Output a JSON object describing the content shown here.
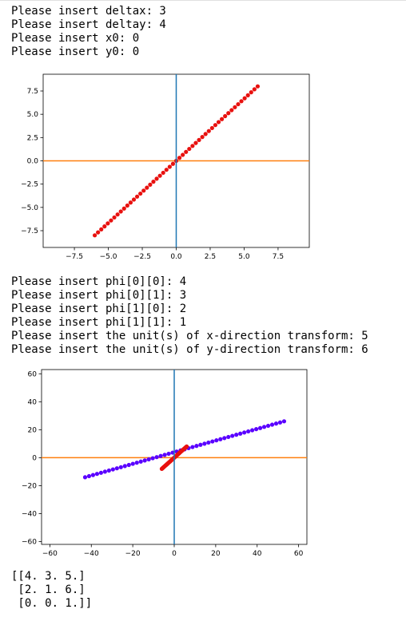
{
  "output_block_1": [
    "Please insert deltax: 3",
    "Please insert deltay: 4",
    "Please insert x0: 0",
    "Please insert y0: 0"
  ],
  "output_block_2": [
    "Please insert phi[0][0]: 4",
    "Please insert phi[0][1]: 3",
    "Please insert phi[1][0]: 2",
    "Please insert phi[1][1]: 1",
    "Please insert the unit(s) of x-direction transform: 5",
    "Please insert the unit(s) of y-direction transform: 6"
  ],
  "matrix_output": [
    "[[4. 3. 5.]",
    " [2. 1. 6.]",
    " [0. 0. 1.]]"
  ],
  "chart_data": [
    {
      "type": "scatter",
      "xlim": [
        -9.8,
        9.8
      ],
      "ylim": [
        -9.3,
        9.3
      ],
      "xticks": [
        "−7.5",
        "−5.0",
        "−2.5",
        "0.0",
        "2.5",
        "5.0",
        "7.5"
      ],
      "yticks": [
        "7.5",
        "5.0",
        "2.5",
        "0.0",
        "−2.5",
        "−5.0",
        "−7.5"
      ],
      "xtick_values": [
        -7.5,
        -5.0,
        -2.5,
        0.0,
        2.5,
        5.0,
        7.5
      ],
      "ytick_values": [
        7.5,
        5.0,
        2.5,
        0.0,
        -2.5,
        -5.0,
        -7.5
      ],
      "series": [
        {
          "color": "#e8110f",
          "x": [
            -6,
            6
          ],
          "y": [
            -8,
            8
          ]
        }
      ],
      "reference_lines": {
        "vertical_x": 0,
        "vertical_color": "#1f77b4",
        "horizontal_y": 0,
        "horizontal_color": "#ff7f0e"
      }
    },
    {
      "type": "scatter",
      "xlim": [
        -64,
        64
      ],
      "ylim": [
        -62,
        63
      ],
      "xticks": [
        "−60",
        "−40",
        "−20",
        "0",
        "20",
        "40",
        "60"
      ],
      "yticks": [
        "60",
        "40",
        "20",
        "0",
        "−20",
        "−40",
        "−60"
      ],
      "xtick_values": [
        -60,
        -40,
        -20,
        0,
        20,
        40,
        60
      ],
      "ytick_values": [
        60,
        40,
        20,
        0,
        -20,
        -40,
        -60
      ],
      "series": [
        {
          "color": "#5a00ff",
          "x": [
            -43,
            53
          ],
          "y": [
            -14,
            26
          ]
        },
        {
          "color": "#e8110f",
          "x": [
            -6,
            6
          ],
          "y": [
            -8,
            8
          ]
        }
      ],
      "reference_lines": {
        "vertical_x": 0,
        "vertical_color": "#1f77b4",
        "horizontal_y": 0,
        "horizontal_color": "#ff7f0e"
      }
    }
  ]
}
